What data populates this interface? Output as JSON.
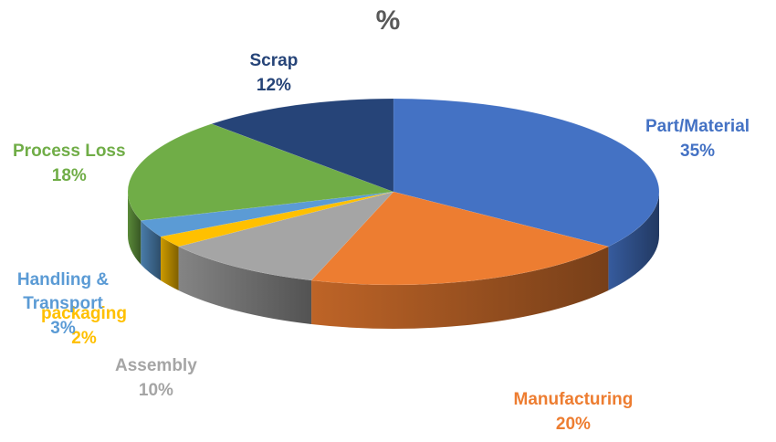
{
  "chart_data": {
    "type": "pie",
    "title": "%",
    "three_d": true,
    "legend": "none",
    "slices": [
      {
        "label": "Part/Material",
        "value": 35,
        "value_label": "35%",
        "color": "#4472C4"
      },
      {
        "label": "Manufacturing",
        "value": 20,
        "value_label": "20%",
        "color": "#ED7D31"
      },
      {
        "label": "Assembly",
        "value": 10,
        "value_label": "10%",
        "color": "#A5A5A5"
      },
      {
        "label": "packaging",
        "value": 2,
        "value_label": "2%",
        "color": "#FFC000"
      },
      {
        "label": "Handling & Transport",
        "value": 3,
        "value_label": "3%",
        "color": "#5B9BD5"
      },
      {
        "label": "Process Loss",
        "value": 18,
        "value_label": "18%",
        "color": "#70AD47"
      },
      {
        "label": "Scrap",
        "value": 12,
        "value_label": "12%",
        "color": "#264478"
      }
    ]
  }
}
